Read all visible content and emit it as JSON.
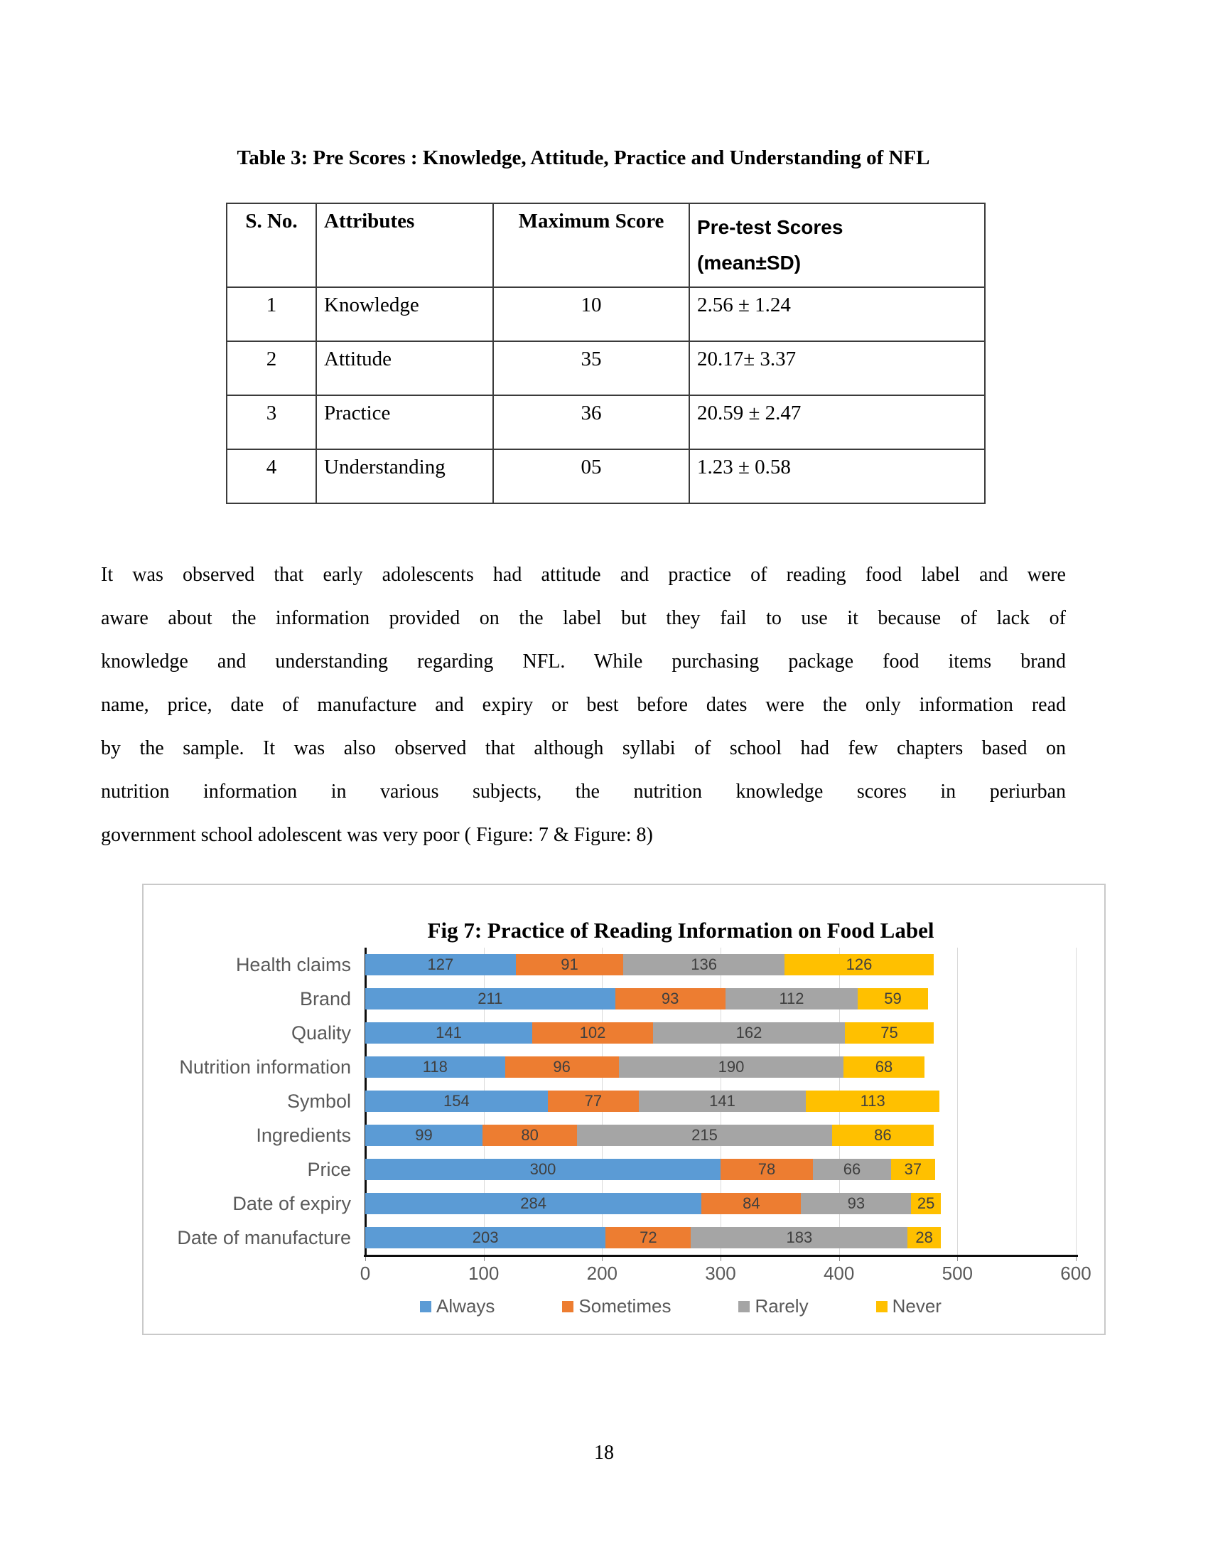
{
  "page": {
    "number": "18"
  },
  "table_section": {
    "title": "Table 3: Pre Scores : Knowledge, Attitude, Practice and Understanding of NFL",
    "columns": {
      "sno": "S. No.",
      "attributes": "Attributes",
      "max": "Maximum Score",
      "pretest_line1": "Pre-test Scores",
      "pretest_line2": "(mean±SD)"
    },
    "rows": [
      {
        "sno": "1",
        "attribute": "Knowledge",
        "max": "10",
        "pretest": "2.56 ± 1.24"
      },
      {
        "sno": "2",
        "attribute": "Attitude",
        "max": "35",
        "pretest": "20.17± 3.37"
      },
      {
        "sno": "3",
        "attribute": "Practice",
        "max": "36",
        "pretest": "20.59 ± 2.47"
      },
      {
        "sno": "4",
        "attribute": "Understanding",
        "max": "05",
        "pretest": "1.23 ± 0.58"
      }
    ]
  },
  "paragraph": {
    "lines": [
      "It was observed that early adolescents had attitude and practice of reading food label and were",
      "aware about the information provided on the label but they fail to use it because of lack of",
      "knowledge and understanding regarding NFL. While purchasing package food items brand",
      "name, price, date of manufacture and expiry or best before dates were the only information read",
      "by the sample. It was also observed that although syllabi of school had few chapters based on",
      "nutrition information in various subjects, the nutrition knowledge scores in periurban",
      "government school adolescent was very poor ( Figure: 7 & Figure: 8)"
    ]
  },
  "chart_data": {
    "type": "bar",
    "stacked": true,
    "orientation": "horizontal",
    "title": "Fig 7: Practice of Reading Information on Food Label",
    "categories": [
      "Health claims",
      "Brand",
      "Quality",
      "Nutrition information",
      "Symbol",
      "Ingredients",
      "Price",
      "Date of expiry",
      "Date of manufacture"
    ],
    "series": [
      {
        "name": "Always",
        "color": "#5B9BD5",
        "values": [
          127,
          211,
          141,
          118,
          154,
          99,
          300,
          284,
          203
        ]
      },
      {
        "name": "Sometimes",
        "color": "#ED7D31",
        "values": [
          91,
          93,
          102,
          96,
          77,
          80,
          78,
          84,
          72
        ]
      },
      {
        "name": "Rarely",
        "color": "#A5A5A5",
        "values": [
          136,
          112,
          162,
          190,
          141,
          215,
          66,
          93,
          183
        ]
      },
      {
        "name": "Never",
        "color": "#FFC000",
        "values": [
          126,
          59,
          75,
          68,
          113,
          86,
          37,
          25,
          28
        ]
      }
    ],
    "xlim": [
      0,
      600
    ],
    "x_ticks": [
      0,
      100,
      200,
      300,
      400,
      500,
      600
    ],
    "gridlines": true,
    "legend_position": "bottom",
    "axis_text_color": "#595959",
    "data_label_color": "#3f3f3f",
    "gridline_color": "#d9d9d9"
  }
}
